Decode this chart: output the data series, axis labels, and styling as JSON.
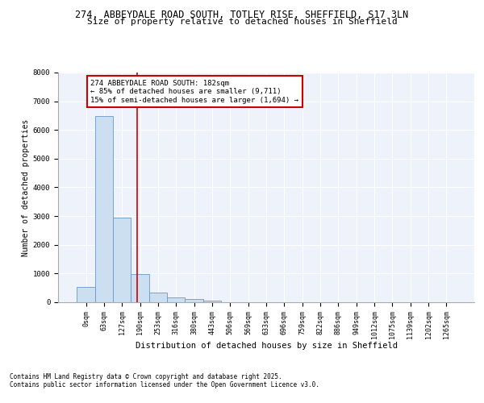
{
  "title_line1": "274, ABBEYDALE ROAD SOUTH, TOTLEY RISE, SHEFFIELD, S17 3LN",
  "title_line2": "Size of property relative to detached houses in Sheffield",
  "xlabel": "Distribution of detached houses by size in Sheffield",
  "ylabel": "Number of detached properties",
  "bar_color": "#ccdff0",
  "bar_edge_color": "#6699cc",
  "background_color": "#eef2fa",
  "grid_color": "#ffffff",
  "categories": [
    "0sqm",
    "63sqm",
    "127sqm",
    "190sqm",
    "253sqm",
    "316sqm",
    "380sqm",
    "443sqm",
    "506sqm",
    "569sqm",
    "633sqm",
    "696sqm",
    "759sqm",
    "822sqm",
    "886sqm",
    "949sqm",
    "1012sqm",
    "1075sqm",
    "1139sqm",
    "1202sqm",
    "1265sqm"
  ],
  "values": [
    520,
    6480,
    2960,
    970,
    330,
    160,
    110,
    60,
    0,
    0,
    0,
    0,
    0,
    0,
    0,
    0,
    0,
    0,
    0,
    0,
    0
  ],
  "ylim": [
    0,
    8000
  ],
  "yticks": [
    0,
    1000,
    2000,
    3000,
    4000,
    5000,
    6000,
    7000,
    8000
  ],
  "vline_x": 2.85,
  "annotation_text": "274 ABBEYDALE ROAD SOUTH: 182sqm\n← 85% of detached houses are smaller (9,711)\n15% of semi-detached houses are larger (1,694) →",
  "annotation_box_color": "#ffffff",
  "annotation_box_edge_color": "#cc0000",
  "vline_color": "#cc0000",
  "footer_line1": "Contains HM Land Registry data © Crown copyright and database right 2025.",
  "footer_line2": "Contains public sector information licensed under the Open Government Licence v3.0.",
  "title_fontsize": 8.5,
  "subtitle_fontsize": 8,
  "axis_label_fontsize": 7.5,
  "tick_fontsize": 6,
  "annotation_fontsize": 6.5,
  "footer_fontsize": 5.5,
  "ylabel_fontsize": 7
}
